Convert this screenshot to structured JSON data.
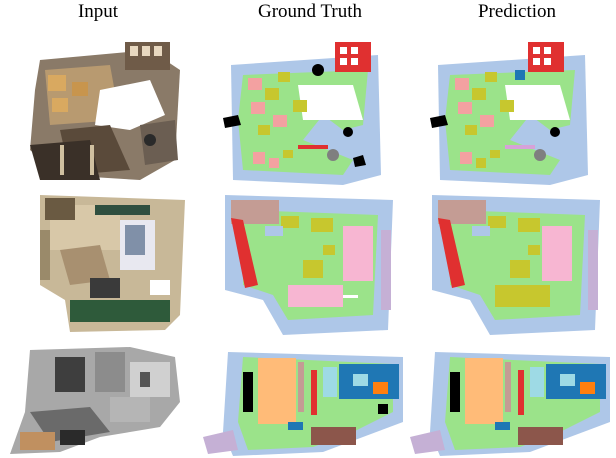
{
  "figure": {
    "columns": [
      "Input",
      "Ground Truth",
      "Prediction"
    ],
    "rows": [
      {
        "scene": "scene-1",
        "panels": [
          "input",
          "ground-truth",
          "prediction"
        ]
      },
      {
        "scene": "scene-2",
        "panels": [
          "input",
          "ground-truth",
          "prediction"
        ]
      },
      {
        "scene": "scene-3",
        "panels": [
          "input",
          "ground-truth",
          "prediction"
        ]
      }
    ]
  },
  "palette": {
    "floor": "#9be38a",
    "wall": "#aec7e8",
    "chair": "#c7c72e",
    "table": "#f3a1a1",
    "window": "#e03030",
    "cabinet": "#c49c94",
    "bed": "#f7b6d2",
    "sofa": "#9e7fd8",
    "door": "#d6a2d8",
    "desk": "#8c564b",
    "tv": "#1f77b4",
    "orange": "#ff7f0e",
    "peach": "#ffbb78",
    "light-blue": "#9edae5",
    "black": "#000000",
    "gray": "#7f7f7f"
  }
}
